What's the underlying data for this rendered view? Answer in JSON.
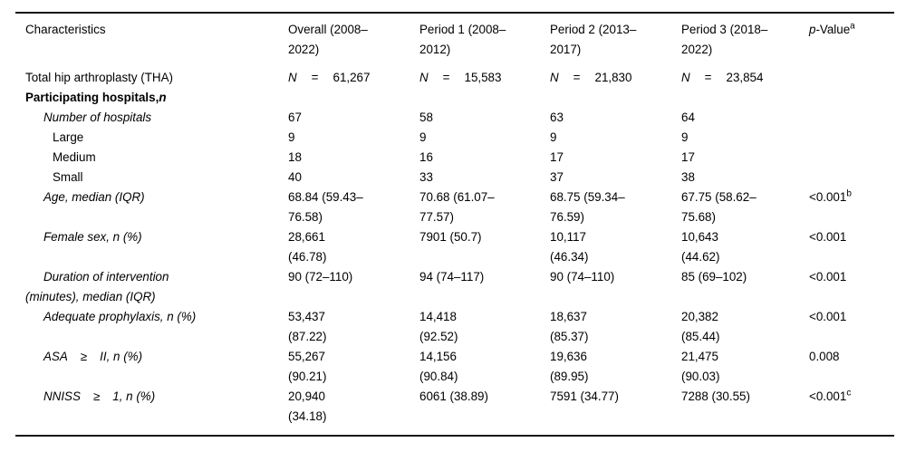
{
  "table": {
    "n_symbol": "N",
    "eq_symbol": "=",
    "colors": {
      "text": "#000000",
      "rule": "#161616",
      "background": "#ffffff"
    },
    "columns": [
      {
        "id": "characteristics",
        "label": "Characteristics"
      },
      {
        "id": "overall",
        "label": "Overall (2008–\n2022)"
      },
      {
        "id": "period-1",
        "label": "Period 1 (2008–\n2012)"
      },
      {
        "id": "period-2",
        "label": "Period 2 (2013–\n2017)"
      },
      {
        "id": "period-3",
        "label": "Period 3 (2018–\n2022)"
      },
      {
        "id": "p-value",
        "label_italic": "p",
        "label": "-Value",
        "sup": "a"
      }
    ],
    "rows": [
      {
        "kind": "n",
        "indent": 0,
        "name": "total-hip-arthroplasty",
        "label": "Total hip arthroplasty (THA)",
        "values": [
          "61,267",
          "15,583",
          "21,830",
          "23,854"
        ],
        "p": ""
      },
      {
        "kind": "section",
        "indent": 0,
        "name": "participating-hospitals",
        "label": "Participating hospitals,",
        "label_n": "n",
        "p": ""
      },
      {
        "kind": "data",
        "indent": 1,
        "italic": true,
        "name": "number-of-hospitals",
        "label": "Number of hospitals",
        "values": [
          "67",
          "58",
          "63",
          "64"
        ],
        "p": ""
      },
      {
        "kind": "data",
        "indent": 2,
        "name": "hospitals-large",
        "label": "Large",
        "values": [
          "9",
          "9",
          "9",
          "9"
        ],
        "p": ""
      },
      {
        "kind": "data",
        "indent": 2,
        "name": "hospitals-medium",
        "label": "Medium",
        "values": [
          "18",
          "16",
          "17",
          "17"
        ],
        "p": ""
      },
      {
        "kind": "data",
        "indent": 2,
        "name": "hospitals-small",
        "label": "Small",
        "values": [
          "40",
          "33",
          "37",
          "38"
        ],
        "p": ""
      },
      {
        "kind": "data",
        "indent": 1,
        "italic": true,
        "name": "age-median-iqr",
        "label": "Age, median (IQR)",
        "values": [
          "68.84 (59.43–\n76.58)",
          "70.68 (61.07–\n77.57)",
          "68.75 (59.34–\n76.59)",
          "67.75 (58.62–\n75.68)"
        ],
        "p": "<0.001",
        "p_sup": "b"
      },
      {
        "kind": "data",
        "indent": 1,
        "italic": true,
        "name": "female-sex",
        "label": "Female sex, n (%)",
        "values": [
          "28,661\n(46.78)",
          "7901 (50.7)",
          "10,117\n(46.34)",
          "10,643\n(44.62)"
        ],
        "p": "<0.001"
      },
      {
        "kind": "data",
        "indent": 1,
        "italic": true,
        "name": "duration-of-intervention",
        "label": "Duration of intervention\n(minutes), median (IQR)",
        "values": [
          "90 (72–110)",
          "94 (74–117)",
          "90 (74–110)",
          "85 (69–102)"
        ],
        "p": "<0.001"
      },
      {
        "kind": "data",
        "indent": 1,
        "italic": true,
        "name": "adequate-prophylaxis",
        "label": "Adequate prophylaxis, n (%)",
        "values": [
          "53,437\n(87.22)",
          "14,418\n(92.52)",
          "18,637\n(85.37)",
          "20,382\n(85.44)"
        ],
        "p": "<0.001"
      },
      {
        "kind": "data",
        "indent": 1,
        "italic": true,
        "name": "asa-ge-ii",
        "label_parts": {
          "pre": "ASA",
          "sym": "≥",
          "post": "II, n (%)"
        },
        "values": [
          "55,267\n(90.21)",
          "14,156\n(90.84)",
          "19,636\n(89.95)",
          "21,475\n(90.03)"
        ],
        "p": "0.008"
      },
      {
        "kind": "data",
        "indent": 1,
        "italic": true,
        "name": "nniss-ge-1",
        "label_parts": {
          "pre": "NNISS",
          "sym": "≥",
          "post": "1, n (%)"
        },
        "values": [
          "20,940\n(34.18)",
          "6061 (38.89)",
          "7591 (34.77)",
          "7288 (30.55)"
        ],
        "p": "<0.001",
        "p_sup": "c"
      }
    ]
  }
}
